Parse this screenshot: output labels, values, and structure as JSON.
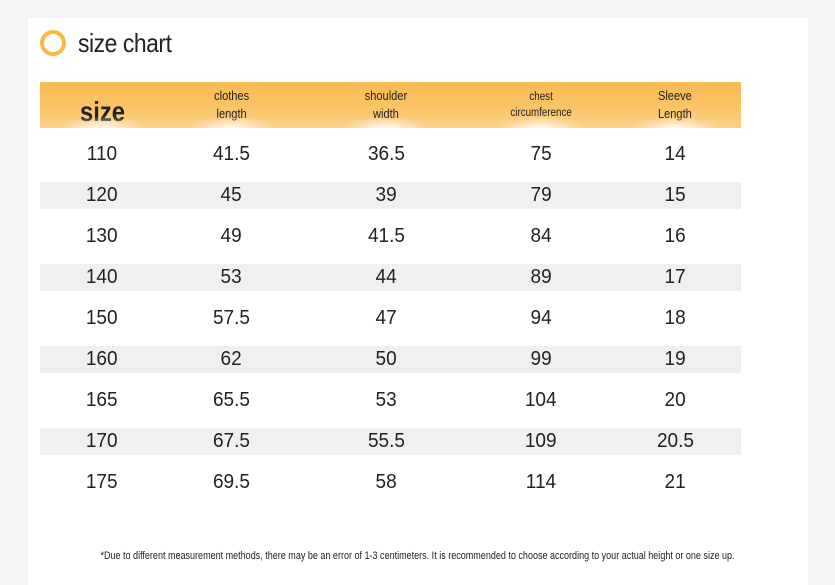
{
  "title": "size chart",
  "columns": [
    {
      "label": "size",
      "style": "big"
    },
    {
      "label": "clothes\nlength",
      "style": "normal"
    },
    {
      "label": "shoulder\nwidth",
      "style": "normal"
    },
    {
      "label": "chest\ncircumference",
      "style": "small"
    },
    {
      "label": "Sleeve\nLength",
      "style": "normal"
    }
  ],
  "rows": [
    [
      "110",
      "41.5",
      "36.5",
      "75",
      "14"
    ],
    [
      "120",
      "45",
      "39",
      "79",
      "15"
    ],
    [
      "130",
      "49",
      "41.5",
      "84",
      "16"
    ],
    [
      "140",
      "53",
      "44",
      "89",
      "17"
    ],
    [
      "150",
      "57.5",
      "47",
      "94",
      "18"
    ],
    [
      "160",
      "62",
      "50",
      "99",
      "19"
    ],
    [
      "165",
      "65.5",
      "53",
      "104",
      "20"
    ],
    [
      "170",
      "67.5",
      "55.5",
      "109",
      "20.5"
    ],
    [
      "175",
      "69.5",
      "58",
      "114",
      "21"
    ]
  ],
  "note": "*Due to different measurement methods, there may be an error of 1-3 centimeters. It is recommended to choose according to your actual height or one size up.",
  "colors": {
    "accent": "#f7b93f",
    "header": "#fbc466",
    "stripe": "#f0f0f0"
  }
}
